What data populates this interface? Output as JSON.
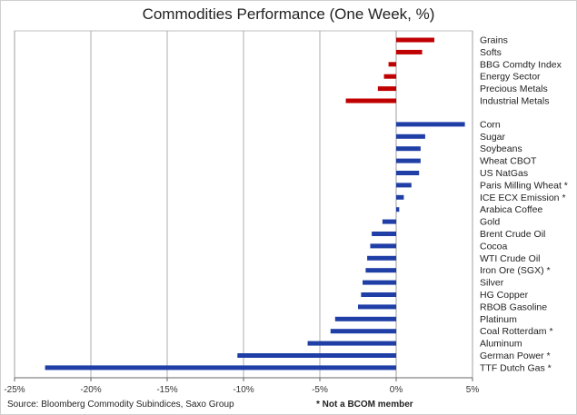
{
  "chart_data": {
    "type": "bar",
    "orientation": "horizontal",
    "title": "Commodities Performance (One Week, %)",
    "xlabel": "",
    "ylabel": "",
    "xlim": [
      -25,
      5
    ],
    "xticks": [
      "-25%",
      "-20%",
      "-15%",
      "-10%",
      "-5%",
      "0%",
      "5%"
    ],
    "grid": true,
    "colors": {
      "group": "#c00000",
      "commodity": "#1f3ea6"
    },
    "groups": [
      {
        "kind": "group",
        "items": [
          {
            "label": "Grains",
            "value": 2.5
          },
          {
            "label": "Softs",
            "value": 1.7
          },
          {
            "label": "BBG Comdty Index",
            "value": -0.5
          },
          {
            "label": "Energy Sector",
            "value": -0.8
          },
          {
            "label": "Precious Metals",
            "value": -1.2
          },
          {
            "label": "Industrial Metals",
            "value": -3.3
          }
        ]
      },
      {
        "kind": "commodity",
        "items": [
          {
            "label": "Corn",
            "value": 4.5
          },
          {
            "label": "Sugar",
            "value": 1.9
          },
          {
            "label": "Soybeans",
            "value": 1.6
          },
          {
            "label": "Wheat CBOT",
            "value": 1.6
          },
          {
            "label": "US NatGas",
            "value": 1.5
          },
          {
            "label": "Paris Milling Wheat *",
            "value": 1.0
          },
          {
            "label": "ICE ECX Emission *",
            "value": 0.5
          },
          {
            "label": "Arabica Coffee",
            "value": 0.2
          },
          {
            "label": "Gold",
            "value": -0.9
          },
          {
            "label": "Brent Crude Oil",
            "value": -1.6
          },
          {
            "label": "Cocoa",
            "value": -1.7
          },
          {
            "label": "WTI Crude Oil",
            "value": -1.9
          },
          {
            "label": "Iron Ore (SGX) *",
            "value": -2.0
          },
          {
            "label": "Silver",
            "value": -2.2
          },
          {
            "label": "HG Copper",
            "value": -2.3
          },
          {
            "label": "RBOB Gasoline",
            "value": -2.5
          },
          {
            "label": "Platinum",
            "value": -4.0
          },
          {
            "label": "Coal Rotterdam *",
            "value": -4.3
          },
          {
            "label": "Aluminum",
            "value": -5.8
          },
          {
            "label": "German Power *",
            "value": -10.4
          },
          {
            "label": "TTF Dutch Gas *",
            "value": -23.0
          }
        ]
      }
    ]
  },
  "footer": {
    "source": "Source: Bloomberg Commodity Subindices, Saxo Group",
    "note": "* Not a BCOM member"
  }
}
